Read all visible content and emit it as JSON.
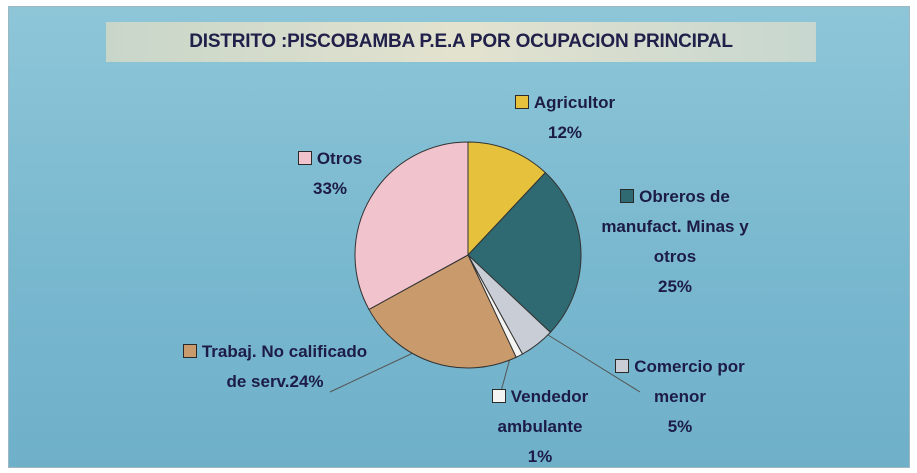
{
  "chart_data": {
    "type": "pie",
    "title": "DISTRITO :PISCOBAMBA P.E.A POR OCUPACION PRINCIPAL",
    "categories": [
      "Agricultor",
      "Obreros de manufact. Minas y otros",
      "Comercio por menor",
      "Vendedor ambulante",
      "Trabaj. No calificado de serv.",
      "Otros"
    ],
    "values": [
      12,
      25,
      5,
      1,
      24,
      33
    ],
    "value_labels": [
      "12%",
      "25%",
      "5%",
      "1%",
      "24%",
      "33%"
    ],
    "colors": [
      "#e6c23c",
      "#2f6a72",
      "#c9cdd6",
      "#f4f4f2",
      "#c99b6c",
      "#f1c3cc"
    ]
  }
}
